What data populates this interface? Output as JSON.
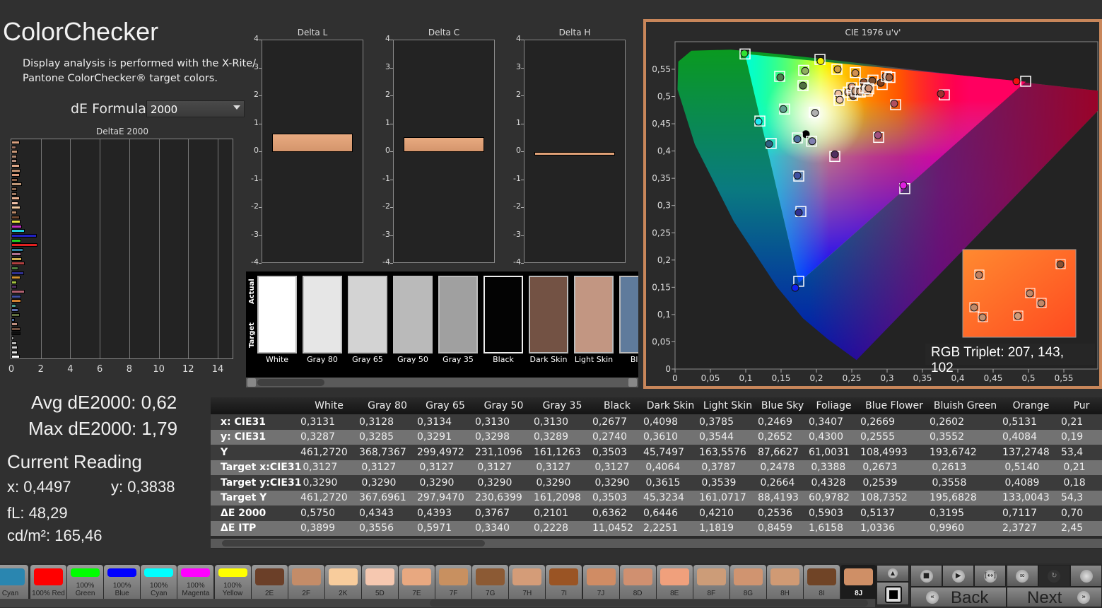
{
  "header": {
    "title": "ColorChecker",
    "description_line1": "Display analysis is performed with the X-Rite/",
    "description_line2": "Pantone ColorChecker® target colors.",
    "de_formula_label": "dE Formula:",
    "de_formula_value": "2000"
  },
  "stats": {
    "avg": "Avg dE2000: 0,62",
    "max": "Max dE2000: 1,79",
    "current_reading_title": "Current Reading",
    "x": "x: 0,4497",
    "y": "y: 0,3838",
    "fl": "fL: 48,29",
    "cdm2": "cd/m²: 165,46"
  },
  "patch_strip": {
    "actual_label": "Actual",
    "target_label": "Target",
    "patches": [
      {
        "name": "White",
        "color": "#ffffff"
      },
      {
        "name": "Gray 80",
        "color": "#e6e6e6"
      },
      {
        "name": "Gray 65",
        "color": "#d3d3d3"
      },
      {
        "name": "Gray 50",
        "color": "#bababa"
      },
      {
        "name": "Gray 35",
        "color": "#a0a0a0"
      },
      {
        "name": "Black",
        "color": "#030303"
      },
      {
        "name": "Dark Skin",
        "color": "#735244"
      },
      {
        "name": "Light Skin",
        "color": "#c29682"
      },
      {
        "name": "Blue",
        "color": "#5f7b9c"
      }
    ]
  },
  "rgb_triplet": "RGB Triplet: 207, 143, 102",
  "chart_data": [
    {
      "type": "bar",
      "orientation": "horizontal",
      "title": "DeltaE 2000",
      "xlim": [
        0,
        15
      ],
      "xticks": [
        "0",
        "2",
        "4",
        "6",
        "8",
        "10",
        "12",
        "14"
      ],
      "grid": true,
      "values": [
        0.57,
        0.34,
        0.43,
        0.38,
        0.38,
        0.57,
        0.64,
        0.57,
        0.43,
        0.74,
        0.38,
        0.38,
        0.57,
        0.48,
        0.64,
        0.38,
        0.57,
        0.64,
        0.74,
        0.92,
        1.72,
        0.67,
        1.79,
        0.82,
        0.67,
        0.72,
        0.92,
        0.48,
        0.87,
        0.64,
        0.38,
        0.38,
        0.92,
        0.67,
        0.67,
        0.32,
        0.48,
        0.57,
        0.25,
        0.42,
        0.64,
        0.64,
        0.21,
        0.38,
        0.44,
        0.43,
        0.57
      ],
      "colors": [
        "#d8a080",
        "#9a7060",
        "#c89878",
        "#b08870",
        "#b89080",
        "#e0a888",
        "#c09070",
        "#d89878",
        "#8a6048",
        "#c09878",
        "#8a6850",
        "#a07860",
        "#e8b090",
        "#f0c0a8",
        "#f0c8a0",
        "#b88868",
        "#704830",
        "#e8e040",
        "#c030c0",
        "#20d0e0",
        "#2020c0",
        "#20d020",
        "#e02020",
        "#3080a0",
        "#b07090",
        "#d0b050",
        "#b04040",
        "#508040",
        "#303090",
        "#d09030",
        "#a0c040",
        "#503060",
        "#b06070",
        "#4050a0",
        "#d08030",
        "#50a090",
        "#6070b0",
        "#607040",
        "#5070a0",
        "#c09080",
        "#705040",
        "#101010",
        "#a0a0a0",
        "#b8b8b8",
        "#d0d0d0",
        "#e0e0e0",
        "#ffffff"
      ]
    },
    {
      "type": "bar",
      "title": "Delta L",
      "ylim": [
        -4,
        4
      ],
      "value": 0.66,
      "color": "#d4956c"
    },
    {
      "type": "bar",
      "title": "Delta C",
      "ylim": [
        -4,
        4
      ],
      "value": 0.53,
      "color": "#d4956c"
    },
    {
      "type": "bar",
      "title": "Delta H",
      "ylim": [
        -4,
        4
      ],
      "value": -0.12,
      "color": "#d4956c"
    },
    {
      "type": "scatter",
      "title": "CIE 1976 u'v'",
      "xlim": [
        0,
        0.6
      ],
      "ylim": [
        0,
        0.6
      ],
      "xticks": [
        "0",
        "0,05",
        "0,1",
        "0,15",
        "0,2",
        "0,25",
        "0,3",
        "0,35",
        "0,4",
        "0,45",
        "0,5",
        "0,55"
      ],
      "yticks": [
        "0",
        "0,05",
        "0,1",
        "0,15",
        "0,2",
        "0,25",
        "0,3",
        "0,35",
        "0,4",
        "0,45",
        "0,5",
        "0,55"
      ],
      "gamut_triangle": [
        [
          0.099,
          0.578
        ],
        [
          0.496,
          0.527
        ],
        [
          0.175,
          0.158
        ]
      ],
      "points": [
        {
          "measured": [
            0.098,
            0.579
          ],
          "target": [
            0.099,
            0.578
          ],
          "color": "#30e030"
        },
        {
          "measured": [
            0.206,
            0.565
          ],
          "target": [
            0.205,
            0.568
          ],
          "color": "#f0f000"
        },
        {
          "measured": [
            0.483,
            0.528
          ],
          "target": [
            0.496,
            0.528
          ],
          "color": "#f01010"
        },
        {
          "measured": [
            0.17,
            0.149
          ],
          "target": [
            0.175,
            0.161
          ],
          "color": "#1020f0"
        },
        {
          "measured": [
            0.118,
            0.454
          ],
          "target": [
            0.12,
            0.455
          ],
          "color": "#20e8f0"
        },
        {
          "measured": [
            0.323,
            0.337
          ],
          "target": [
            0.325,
            0.331
          ],
          "color": "#e020e0"
        },
        {
          "measured": [
            0.198,
            0.47
          ],
          "target": [
            0.197,
            0.471
          ],
          "color": "#b0b0b0"
        },
        {
          "measured": [
            0.185,
            0.431
          ],
          "color": "#000000"
        },
        {
          "measured": [
            0.149,
            0.535
          ],
          "target": [
            0.148,
            0.537
          ],
          "color": "#508050"
        },
        {
          "measured": [
            0.184,
            0.547
          ],
          "target": [
            0.182,
            0.548
          ],
          "color": "#90b060"
        },
        {
          "measured": [
            0.181,
            0.52
          ],
          "target": [
            0.181,
            0.52
          ],
          "color": "#507040"
        },
        {
          "measured": [
            0.153,
            0.477
          ],
          "target": [
            0.155,
            0.477
          ],
          "color": "#60a090"
        },
        {
          "measured": [
            0.133,
            0.413
          ],
          "target": [
            0.136,
            0.414
          ],
          "color": "#306080"
        },
        {
          "measured": [
            0.173,
            0.422
          ],
          "target": [
            0.173,
            0.424
          ],
          "color": "#5070a0"
        },
        {
          "measured": [
            0.194,
            0.418
          ],
          "target": [
            0.193,
            0.418
          ],
          "color": "#8080b0"
        },
        {
          "measured": [
            0.226,
            0.394
          ],
          "target": [
            0.226,
            0.39
          ],
          "color": "#503060"
        },
        {
          "measured": [
            0.173,
            0.355
          ],
          "target": [
            0.175,
            0.354
          ],
          "color": "#4050a0"
        },
        {
          "measured": [
            0.175,
            0.287
          ],
          "target": [
            0.178,
            0.289
          ],
          "color": "#303090"
        },
        {
          "measured": [
            0.287,
            0.429
          ],
          "target": [
            0.288,
            0.425
          ],
          "color": "#a05080"
        },
        {
          "measured": [
            0.31,
            0.487
          ],
          "target": [
            0.312,
            0.485
          ],
          "color": "#b05060"
        },
        {
          "measured": [
            0.376,
            0.505
          ],
          "target": [
            0.381,
            0.503
          ],
          "color": "#a03030"
        },
        {
          "measured": [
            0.23,
            0.55
          ],
          "target": [
            0.229,
            0.55
          ],
          "color": "#d0a040"
        },
        {
          "measured": [
            0.255,
            0.543
          ],
          "target": [
            0.255,
            0.544
          ],
          "color": "#d09050"
        },
        {
          "measured": [
            0.267,
            0.526
          ],
          "target": [
            0.268,
            0.524
          ],
          "color": "#905030"
        },
        {
          "measured": [
            0.279,
            0.529
          ],
          "target": [
            0.28,
            0.53
          ],
          "color": "#805030"
        },
        {
          "measured": [
            0.291,
            0.525
          ],
          "target": [
            0.293,
            0.522
          ],
          "color": "#804020"
        },
        {
          "measured": [
            0.298,
            0.537
          ],
          "target": [
            0.299,
            0.537
          ],
          "color": "#c08060"
        },
        {
          "measured": [
            0.303,
            0.535
          ],
          "target": [
            0.304,
            0.535
          ],
          "color": "#a06040"
        },
        {
          "measured": [
            0.231,
            0.505
          ],
          "target": [
            0.232,
            0.503
          ],
          "color": "#f0c0a0"
        },
        {
          "measured": [
            0.233,
            0.494
          ],
          "target": [
            0.232,
            0.493
          ],
          "color": "#f0c8b0"
        },
        {
          "measured": [
            0.245,
            0.508
          ],
          "target": [
            0.245,
            0.508
          ],
          "color": "#c09070"
        },
        {
          "measured": [
            0.25,
            0.518
          ],
          "target": [
            0.25,
            0.516
          ],
          "color": "#d09070"
        },
        {
          "measured": [
            0.252,
            0.501
          ],
          "target": [
            0.251,
            0.502
          ],
          "color": "#705040"
        },
        {
          "measured": [
            0.255,
            0.51
          ],
          "target": [
            0.256,
            0.51
          ],
          "color": "#c09878"
        },
        {
          "measured": [
            0.262,
            0.509
          ],
          "target": [
            0.262,
            0.508
          ],
          "color": "#d0a080"
        },
        {
          "measured": [
            0.268,
            0.516
          ],
          "target": [
            0.268,
            0.516
          ],
          "color": "#b08060"
        },
        {
          "measured": [
            0.272,
            0.51
          ],
          "target": [
            0.272,
            0.51
          ],
          "color": "#e0a888"
        },
        {
          "measured": [
            0.274,
            0.515
          ],
          "target": [
            0.274,
            0.514
          ],
          "color": "#c89070"
        }
      ]
    }
  ],
  "table": {
    "columns": [
      "White",
      "Gray 80",
      "Gray 65",
      "Gray 50",
      "Gray 35",
      "Black",
      "Dark Skin",
      "Light Skin",
      "Blue Sky",
      "Foliage",
      "Blue Flower",
      "Bluish Green",
      "Orange",
      "Pur"
    ],
    "rows": [
      {
        "label": "x: CIE31",
        "values": [
          "0,3131",
          "0,3128",
          "0,3134",
          "0,3130",
          "0,3130",
          "0,2677",
          "0,4098",
          "0,3785",
          "0,2469",
          "0,3407",
          "0,2669",
          "0,2602",
          "0,5131",
          "0,21"
        ]
      },
      {
        "label": "y: CIE31",
        "values": [
          "0,3287",
          "0,3285",
          "0,3291",
          "0,3298",
          "0,3289",
          "0,2740",
          "0,3610",
          "0,3544",
          "0,2652",
          "0,4300",
          "0,2555",
          "0,3552",
          "0,4084",
          "0,19"
        ]
      },
      {
        "label": "Y",
        "values": [
          "461,2720",
          "368,7367",
          "299,4972",
          "231,1096",
          "161,1263",
          "0,3503",
          "45,7497",
          "163,5576",
          "87,6627",
          "61,0031",
          "108,4993",
          "193,6742",
          "137,2748",
          "53,4"
        ]
      },
      {
        "label": "Target x:CIE31",
        "values": [
          "0,3127",
          "0,3127",
          "0,3127",
          "0,3127",
          "0,3127",
          "0,3127",
          "0,4064",
          "0,3787",
          "0,2478",
          "0,3388",
          "0,2673",
          "0,2613",
          "0,5140",
          "0,21"
        ]
      },
      {
        "label": "Target y:CIE31",
        "values": [
          "0,3290",
          "0,3290",
          "0,3290",
          "0,3290",
          "0,3290",
          "0,3290",
          "0,3615",
          "0,3539",
          "0,2664",
          "0,4328",
          "0,2539",
          "0,3558",
          "0,4089",
          "0,18"
        ]
      },
      {
        "label": "Target Y",
        "values": [
          "461,2720",
          "367,6961",
          "297,9470",
          "230,6399",
          "161,2098",
          "0,3503",
          "45,3234",
          "161,0717",
          "88,4193",
          "60,9782",
          "108,7352",
          "195,6828",
          "133,0043",
          "54,3"
        ]
      },
      {
        "label": "ΔE 2000",
        "values": [
          "0,5750",
          "0,4343",
          "0,4393",
          "0,3767",
          "0,2101",
          "0,6362",
          "0,6446",
          "0,4210",
          "0,2536",
          "0,5903",
          "0,5137",
          "0,3195",
          "0,7117",
          "0,70"
        ]
      },
      {
        "label": "ΔE ITP",
        "values": [
          "0,3899",
          "0,3556",
          "0,5971",
          "0,3340",
          "0,2228",
          "11,0452",
          "2,2251",
          "1,1819",
          "0,8459",
          "1,6158",
          "1,0336",
          "0,9960",
          "2,3727",
          "2,45"
        ]
      }
    ]
  },
  "swatches": [
    {
      "label": "Cyan",
      "color": "#2a86b0",
      "tall": true
    },
    {
      "label": "100% Red",
      "color": "#ff0000",
      "tall": true
    },
    {
      "label": "100%\nGreen",
      "color": "#00ff00"
    },
    {
      "label": "100%\nBlue",
      "color": "#0000ff"
    },
    {
      "label": "100%\nCyan",
      "color": "#00ffff"
    },
    {
      "label": "100%\nMagenta",
      "color": "#ff00ff"
    },
    {
      "label": "100%\nYellow",
      "color": "#ffff00"
    },
    {
      "label": "2E",
      "color": "#6b3f28",
      "tall": true
    },
    {
      "label": "2F",
      "color": "#c48c68",
      "tall": true
    },
    {
      "label": "2K",
      "color": "#f8cc9c",
      "tall": true
    },
    {
      "label": "5D",
      "color": "#f6c8b0",
      "tall": true
    },
    {
      "label": "7E",
      "color": "#e8a880",
      "tall": true
    },
    {
      "label": "7F",
      "color": "#c89060",
      "tall": true
    },
    {
      "label": "7G",
      "color": "#8c5a34",
      "tall": true
    },
    {
      "label": "7H",
      "color": "#d49c78",
      "tall": true
    },
    {
      "label": "7I",
      "color": "#9a5424",
      "tall": true
    },
    {
      "label": "7J",
      "color": "#d08c64",
      "tall": true
    },
    {
      "label": "8D",
      "color": "#d09070",
      "tall": true
    },
    {
      "label": "8E",
      "color": "#f0a07c",
      "tall": true
    },
    {
      "label": "8F",
      "color": "#cc9c78",
      "tall": true
    },
    {
      "label": "8G",
      "color": "#d09470",
      "tall": true
    },
    {
      "label": "8H",
      "color": "#d09a74",
      "tall": true
    },
    {
      "label": "8I",
      "color": "#704426",
      "tall": true
    },
    {
      "label": "8J",
      "color": "#cf8f66",
      "tall": true,
      "selected": true
    }
  ],
  "controls": {
    "back": "Back",
    "next": "Next",
    "back_glyph": "«",
    "next_glyph": "»",
    "icons": [
      "stop-icon",
      "play-icon",
      "fit-icon",
      "infinity-icon",
      "refresh-icon",
      "circle-icon"
    ]
  },
  "colors": {
    "accent_border": "#c8865a",
    "background": "#303030"
  }
}
